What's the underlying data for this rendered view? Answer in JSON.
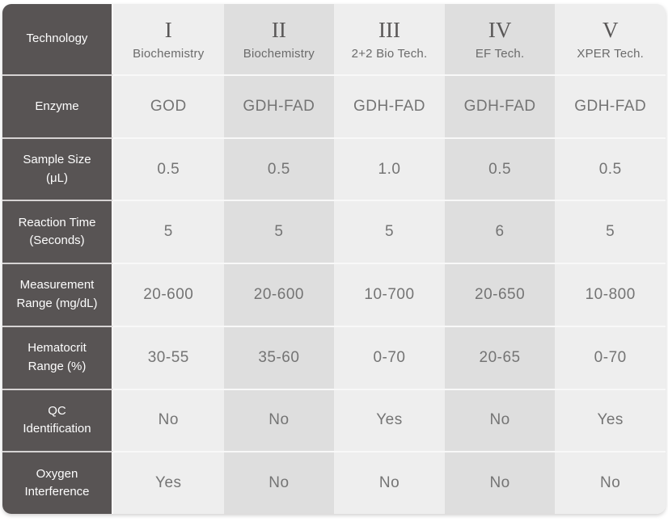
{
  "colors": {
    "row_header_bg": "#585454",
    "row_header_text": "#fdfdfd",
    "column_light_bg": "#eeeeee",
    "column_shaded_bg": "#dedede",
    "value_text": "#747474",
    "numeral_text": "#595757",
    "row_separator_on_dark": "#d6d3d3",
    "row_separator_on_light": "#f8f8f8",
    "page_bg": "#ffffff"
  },
  "table": {
    "row_labels": [
      {
        "key": "technology",
        "lines": [
          "Technology"
        ]
      },
      {
        "key": "enzyme",
        "lines": [
          "Enzyme"
        ]
      },
      {
        "key": "sample-size",
        "lines": [
          "Sample Size",
          "(μL)"
        ]
      },
      {
        "key": "reaction-time",
        "lines": [
          "Reaction Time",
          "(Seconds)"
        ]
      },
      {
        "key": "measurement-range",
        "lines": [
          "Measurement",
          "Range (mg/dL)"
        ]
      },
      {
        "key": "hematocrit-range",
        "lines": [
          "Hematocrit",
          "Range (%)"
        ]
      },
      {
        "key": "qc-identification",
        "lines": [
          "QC",
          "Identification"
        ]
      },
      {
        "key": "oxygen-interference",
        "lines": [
          "Oxygen",
          "Interference"
        ]
      }
    ],
    "columns": [
      {
        "numeral": "I",
        "name": "Biochemistry",
        "shaded": false,
        "values": [
          "GOD",
          "0.5",
          "5",
          "20-600",
          "30-55",
          "No",
          "Yes"
        ]
      },
      {
        "numeral": "II",
        "name": "Biochemistry",
        "shaded": true,
        "values": [
          "GDH-FAD",
          "0.5",
          "5",
          "20-600",
          "35-60",
          "No",
          "No"
        ]
      },
      {
        "numeral": "III",
        "name": "2+2 Bio Tech.",
        "shaded": false,
        "values": [
          "GDH-FAD",
          "1.0",
          "5",
          "10-700",
          "0-70",
          "Yes",
          "No"
        ]
      },
      {
        "numeral": "IV",
        "name": "EF Tech.",
        "shaded": true,
        "values": [
          "GDH-FAD",
          "0.5",
          "6",
          "20-650",
          "20-65",
          "No",
          "No"
        ]
      },
      {
        "numeral": "V",
        "name": "XPER Tech.",
        "shaded": false,
        "values": [
          "GDH-FAD",
          "0.5",
          "5",
          "10-800",
          "0-70",
          "Yes",
          "No"
        ]
      }
    ]
  },
  "chart_data": {
    "type": "table",
    "title": "",
    "row_headers": [
      "Technology",
      "Enzyme",
      "Sample Size (μL)",
      "Reaction Time (Seconds)",
      "Measurement Range (mg/dL)",
      "Hematocrit Range (%)",
      "QC Identification",
      "Oxygen Interference"
    ],
    "column_headers": [
      "I Biochemistry",
      "II Biochemistry",
      "III 2+2 Bio Tech.",
      "IV EF Tech.",
      "V XPER Tech."
    ],
    "cells": [
      [
        "Biochemistry",
        "Biochemistry",
        "2+2 Bio Tech.",
        "EF Tech.",
        "XPER Tech."
      ],
      [
        "GOD",
        "GDH-FAD",
        "GDH-FAD",
        "GDH-FAD",
        "GDH-FAD"
      ],
      [
        "0.5",
        "0.5",
        "1.0",
        "0.5",
        "0.5"
      ],
      [
        "5",
        "5",
        "5",
        "6",
        "5"
      ],
      [
        "20-600",
        "20-600",
        "10-700",
        "20-650",
        "10-800"
      ],
      [
        "30-55",
        "35-60",
        "0-70",
        "20-65",
        "0-70"
      ],
      [
        "No",
        "No",
        "Yes",
        "No",
        "Yes"
      ],
      [
        "Yes",
        "No",
        "No",
        "No",
        "No"
      ]
    ],
    "layout_hints": {
      "header_column_dark": true,
      "alternating_column_shading": true,
      "rounded_outer_corners": true
    }
  }
}
